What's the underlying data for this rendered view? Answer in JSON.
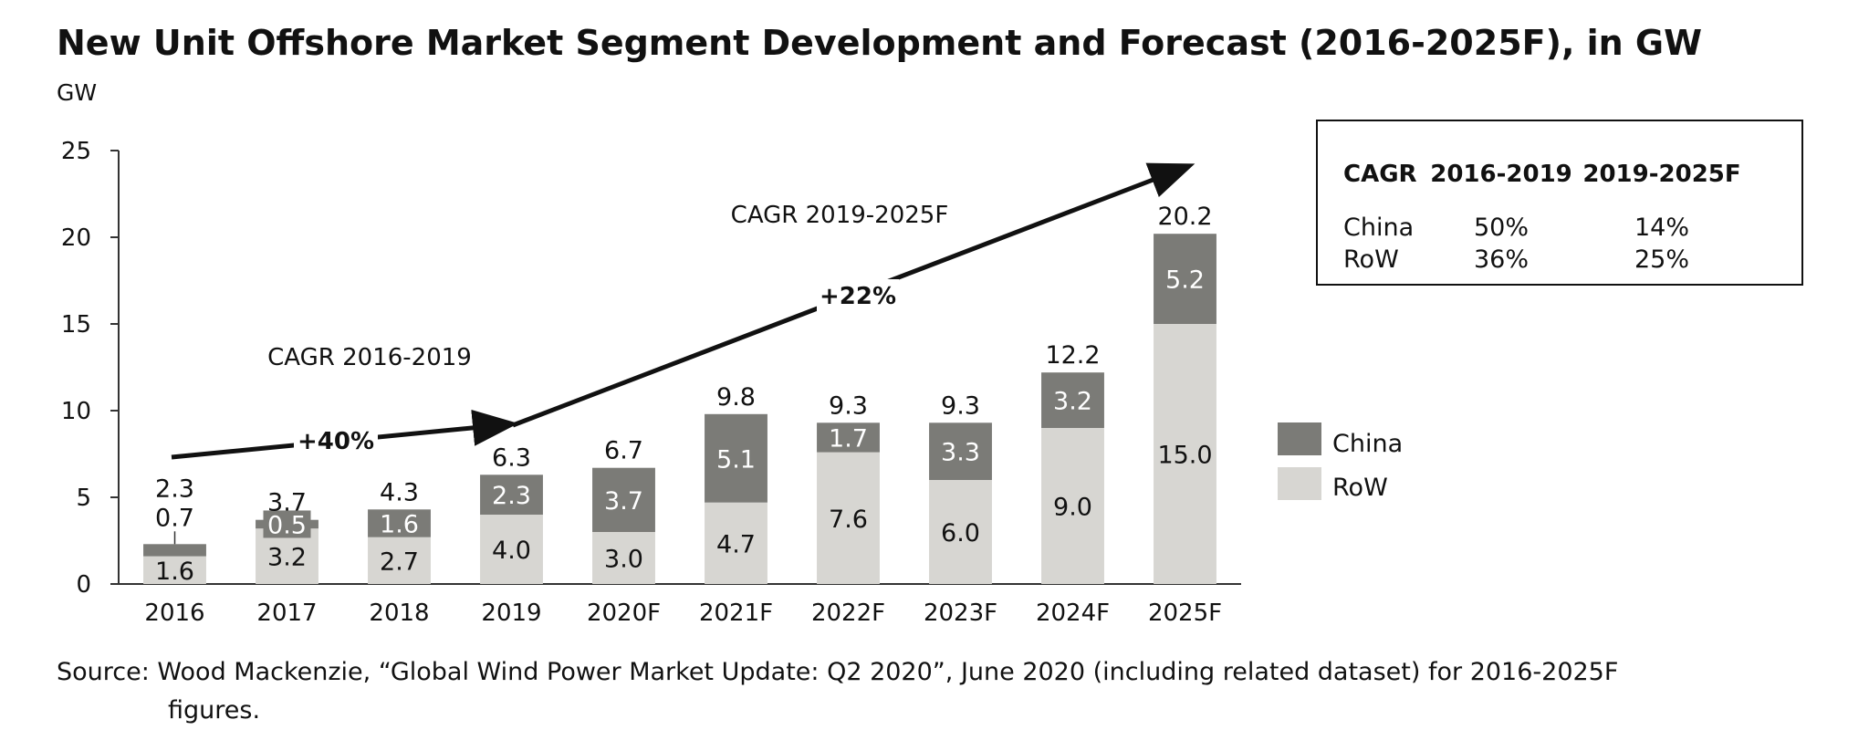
{
  "title": "New Unit Offshore Market Segment Development and Forecast (2016-2025F), in GW",
  "colors": {
    "china": "#7b7b77",
    "row": "#d7d6d2",
    "axis": "#333333",
    "text": "#111111"
  },
  "annotations": {
    "cagr1_label": "CAGR 2016-2019",
    "cagr1_value": "+40%",
    "cagr2_label": "CAGR 2019-2025F",
    "cagr2_value": "+22%"
  },
  "cagr_table": {
    "header": [
      "CAGR",
      "2016-2019",
      "2019-2025F"
    ],
    "rows": [
      [
        "China",
        "50%",
        "14%"
      ],
      [
        "RoW",
        "36%",
        "25%"
      ]
    ]
  },
  "source": {
    "line1": "Source: Wood Mackenzie, “Global Wind Power Market Update: Q2 2020”, June 2020 (including related dataset) for 2016-2025F",
    "line2": "figures."
  },
  "chart_data": {
    "type": "bar",
    "stacked": true,
    "title": "New Unit Offshore Market Segment Development and Forecast (2016-2025F), in GW",
    "ylabel": "GW",
    "xlabel": "",
    "ylim": [
      0,
      25
    ],
    "yticks": [
      0,
      5,
      10,
      15,
      20,
      25
    ],
    "categories": [
      "2016",
      "2017",
      "2018",
      "2019",
      "2020F",
      "2021F",
      "2022F",
      "2023F",
      "2024F",
      "2025F"
    ],
    "series": [
      {
        "name": "RoW",
        "values": [
          1.6,
          3.2,
          2.7,
          4.0,
          3.0,
          4.7,
          7.6,
          6.0,
          9.0,
          15.0
        ],
        "labels": [
          "1.6",
          "3.2",
          "2.7",
          "4.0",
          "3.0",
          "4.7",
          "7.6",
          "6.0",
          "9.0",
          "15.0"
        ]
      },
      {
        "name": "China",
        "values": [
          0.7,
          0.5,
          1.6,
          2.3,
          3.7,
          5.1,
          1.7,
          3.3,
          3.2,
          5.2
        ],
        "labels": [
          "0.7",
          "0.5",
          "1.6",
          "2.3",
          "3.7",
          "5.1",
          "1.7",
          "3.3",
          "3.2",
          "5.2"
        ]
      }
    ],
    "totals": [
      "2.3",
      "3.7",
      "4.3",
      "6.3",
      "6.7",
      "9.8",
      "9.3",
      "9.3",
      "12.2",
      "20.2"
    ],
    "legend": [
      "China",
      "RoW"
    ],
    "legend_position": "right",
    "grid": false
  }
}
